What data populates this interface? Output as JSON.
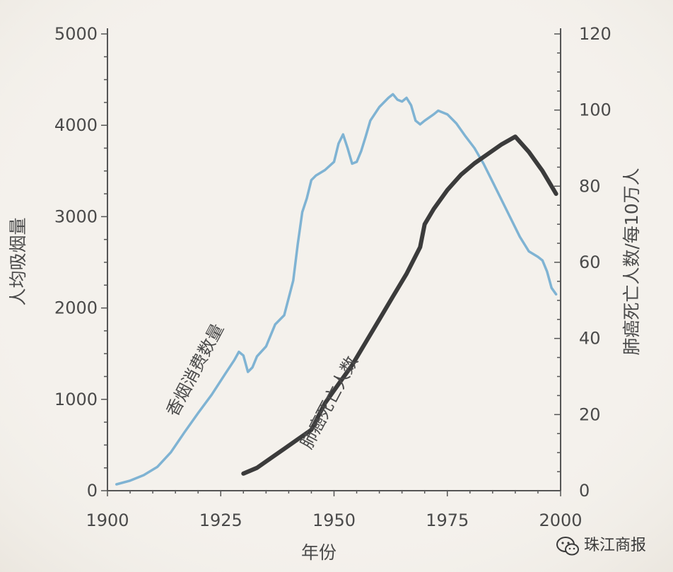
{
  "chart_data": {
    "type": "line",
    "xlabel": "年份",
    "ylabel_left": "人均吸烟量",
    "ylabel_right": "肺癌死亡人数/每10万人",
    "x_ticks": [
      1900,
      1925,
      1950,
      1975,
      2000
    ],
    "y_left_ticks": [
      0,
      1000,
      2000,
      3000,
      4000,
      5000
    ],
    "y_right_ticks": [
      0,
      20,
      40,
      60,
      80,
      100,
      120
    ],
    "xlim": [
      1900,
      2000
    ],
    "ylim_left": [
      0,
      5000
    ],
    "ylim_right": [
      0,
      120
    ],
    "grid": false,
    "series": [
      {
        "name": "香烟消费数量",
        "axis": "left",
        "color": "#7fb3d3",
        "x": [
          1902,
          1905,
          1908,
          1911,
          1914,
          1917,
          1920,
          1923,
          1926,
          1928,
          1929,
          1930,
          1931,
          1932,
          1933,
          1935,
          1937,
          1939,
          1941,
          1942,
          1943,
          1944,
          1945,
          1946,
          1947,
          1948,
          1950,
          1951,
          1952,
          1953,
          1954,
          1955,
          1956,
          1957,
          1958,
          1960,
          1962,
          1963,
          1964,
          1965,
          1966,
          1967,
          1968,
          1969,
          1970,
          1972,
          1973,
          1975,
          1977,
          1979,
          1981,
          1983,
          1985,
          1987,
          1989,
          1991,
          1993,
          1995,
          1996,
          1997,
          1998,
          1999
        ],
        "y": [
          70,
          110,
          170,
          260,
          420,
          640,
          850,
          1050,
          1280,
          1430,
          1520,
          1480,
          1300,
          1350,
          1470,
          1580,
          1820,
          1920,
          2300,
          2700,
          3050,
          3200,
          3400,
          3450,
          3480,
          3510,
          3600,
          3800,
          3900,
          3750,
          3580,
          3600,
          3720,
          3880,
          4050,
          4200,
          4300,
          4340,
          4280,
          4260,
          4300,
          4220,
          4050,
          4010,
          4050,
          4120,
          4160,
          4120,
          4020,
          3880,
          3750,
          3580,
          3380,
          3180,
          2980,
          2780,
          2620,
          2560,
          2520,
          2400,
          2220,
          2150
        ]
      },
      {
        "name": "肺癌死亡人数",
        "axis": "right",
        "color": "#3b3b3b",
        "x": [
          1930,
          1933,
          1936,
          1939,
          1942,
          1945,
          1948,
          1951,
          1954,
          1957,
          1960,
          1963,
          1966,
          1969,
          1970,
          1972,
          1975,
          1978,
          1981,
          1984,
          1987,
          1990,
          1993,
          1996,
          1999
        ],
        "y": [
          4.5,
          6,
          8.5,
          11,
          13.5,
          16,
          23,
          28,
          33,
          39,
          45,
          51,
          57,
          64,
          70,
          74,
          79,
          83,
          86,
          88.5,
          91,
          93,
          89,
          84,
          78
        ]
      }
    ]
  },
  "watermark": {
    "text": "珠江商报",
    "icon": "wechat-icon"
  }
}
